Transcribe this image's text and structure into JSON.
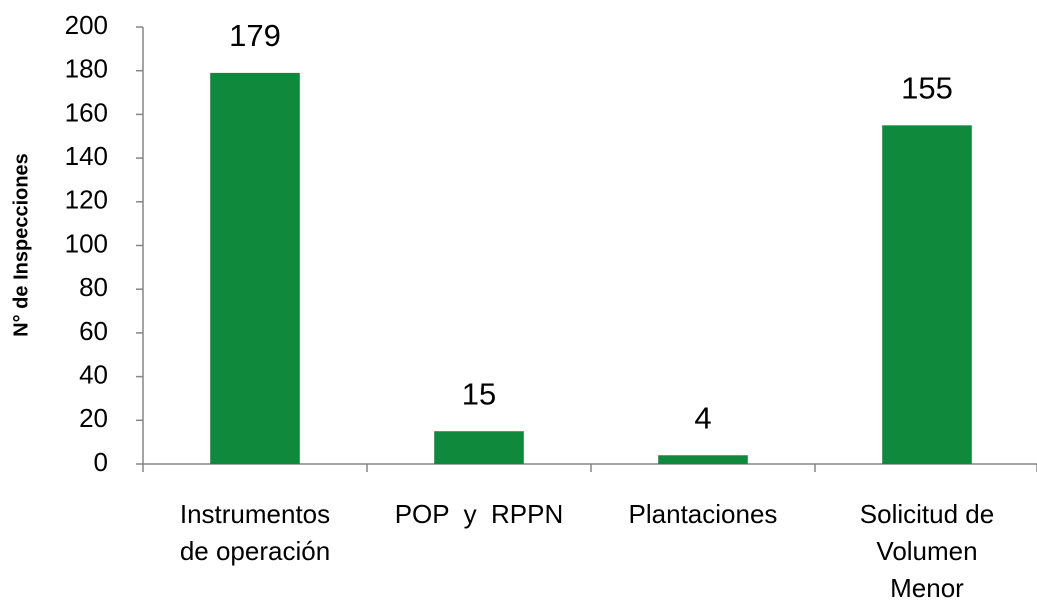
{
  "chart_data": {
    "type": "bar",
    "y_axis_label": "N° de Inspecciones",
    "categories": [
      "Instrumentos de operación",
      "POP  y  RPPN",
      "Plantaciones",
      "Solicitud de Volumen Menor"
    ],
    "values": [
      179,
      15,
      4,
      155
    ],
    "color": "#0f8a3d",
    "ylim": [
      0,
      200
    ],
    "yticks": [
      0,
      20,
      40,
      60,
      80,
      100,
      120,
      140,
      160,
      180,
      200
    ],
    "grid": false
  }
}
